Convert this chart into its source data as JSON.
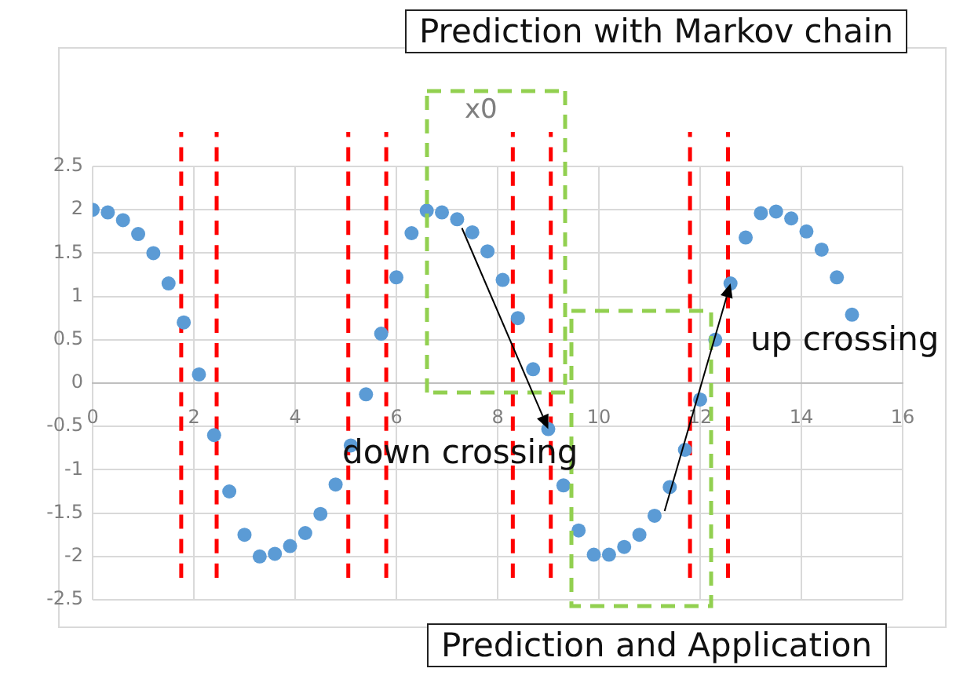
{
  "chart_data": {
    "type": "scatter",
    "color": "#5b9bd5",
    "marker": "circle",
    "grid": true,
    "x": [
      0,
      0.3,
      0.6,
      0.9,
      1.2,
      1.5,
      1.8,
      2.1,
      2.4,
      2.7,
      3.0,
      3.3,
      3.6,
      3.9,
      4.2,
      4.5,
      4.8,
      5.1,
      5.4,
      5.7,
      6.0,
      6.3,
      6.6,
      6.9,
      7.2,
      7.5,
      7.8,
      8.1,
      8.4,
      8.7,
      9.0,
      9.3,
      9.6,
      9.9,
      10.2,
      10.5,
      10.8,
      11.1,
      11.4,
      11.7,
      12.0,
      12.3,
      12.6,
      12.9,
      13.2,
      13.5,
      13.8,
      14.1,
      14.4,
      14.7,
      15.0
    ],
    "values": [
      2.0,
      1.97,
      1.88,
      1.72,
      1.5,
      1.15,
      0.7,
      0.1,
      -0.6,
      -1.25,
      -1.75,
      -2.0,
      -1.97,
      -1.88,
      -1.73,
      -1.51,
      -1.17,
      -0.72,
      -0.13,
      0.57,
      1.22,
      1.73,
      1.99,
      1.97,
      1.89,
      1.74,
      1.52,
      1.19,
      0.75,
      0.16,
      -0.53,
      -1.18,
      -1.7,
      -1.98,
      -1.98,
      -1.89,
      -1.75,
      -1.53,
      -1.2,
      -0.77,
      -0.19,
      0.5,
      1.15,
      1.68,
      1.96,
      1.98,
      1.9,
      1.75,
      1.54,
      1.22,
      0.79
    ],
    "xlim": [
      0,
      16
    ],
    "xticks": [
      0,
      2,
      4,
      6,
      8,
      10,
      12,
      14,
      16
    ],
    "ylim": [
      -2.5,
      2.5
    ],
    "yticks": [
      -2.5,
      -2,
      -1.5,
      -1,
      -0.5,
      0,
      0.5,
      1,
      1.5,
      2,
      2.5
    ],
    "ref_lines": [
      {
        "axis": "x",
        "value": 1.75,
        "color": "#ff0000",
        "line_style": "dashed"
      },
      {
        "axis": "x",
        "value": 2.45,
        "color": "#ff0000",
        "line_style": "dashed"
      },
      {
        "axis": "x",
        "value": 5.05,
        "color": "#ff0000",
        "line_style": "dashed"
      },
      {
        "axis": "x",
        "value": 5.8,
        "color": "#ff0000",
        "line_style": "dashed"
      },
      {
        "axis": "x",
        "value": 8.3,
        "color": "#ff0000",
        "line_style": "dashed"
      },
      {
        "axis": "x",
        "value": 9.05,
        "color": "#ff0000",
        "line_style": "dashed"
      },
      {
        "axis": "x",
        "value": 11.8,
        "color": "#ff0000",
        "line_style": "dashed"
      },
      {
        "axis": "x",
        "value": 12.55,
        "color": "#ff0000",
        "line_style": "dashed"
      }
    ],
    "annotations": [
      "Prediction with Markov chain",
      "x0",
      {
        "text": "down crossing",
        "x": 9.0,
        "y": -0.53
      },
      {
        "text": "up crossing",
        "x": 12.6,
        "y": 1.15
      },
      "Prediction and Application"
    ]
  }
}
